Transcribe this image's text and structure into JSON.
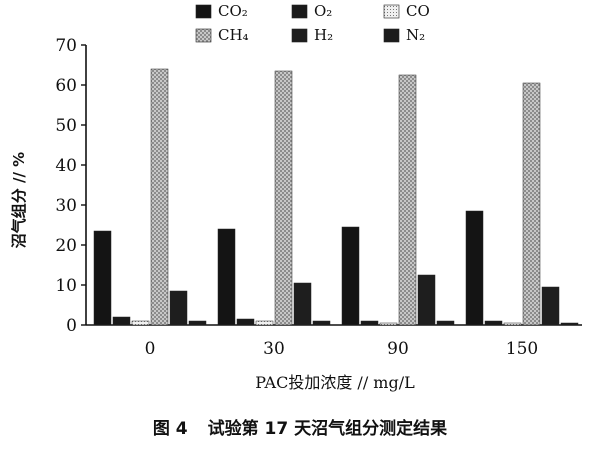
{
  "chart_data": {
    "type": "bar",
    "categories": [
      "0",
      "30",
      "90",
      "150"
    ],
    "series": [
      {
        "name": "CO₂",
        "values": [
          23.5,
          24,
          24.5,
          28.5
        ]
      },
      {
        "name": "O₂",
        "values": [
          2,
          1.5,
          1,
          1
        ]
      },
      {
        "name": "CO",
        "values": [
          1,
          1,
          0.5,
          0.5
        ]
      },
      {
        "name": "CH₄",
        "values": [
          64,
          63.5,
          62.5,
          60.5
        ]
      },
      {
        "name": "H₂",
        "values": [
          8.5,
          10.5,
          12.5,
          9.5
        ]
      },
      {
        "name": "N₂",
        "values": [
          1,
          1,
          1,
          0.5
        ]
      }
    ],
    "ylim": [
      0,
      70
    ],
    "yticks": [
      "0",
      "10",
      "20",
      "30",
      "40",
      "50",
      "60",
      "70"
    ],
    "xlabel": "PAC投加浓度 // mg/L",
    "ylabel": "沼气组分 // %",
    "legend_placement": "top",
    "colors": {
      "CO₂": "#141414",
      "O₂": "#1a1a1a",
      "CO": "#d9d9d9",
      "CH₄": "#9a9a9a",
      "H₂": "#1e1e1e",
      "N₂": "#1c1c1c"
    }
  },
  "caption": {
    "label": "图 4",
    "text": "试验第 17 天沼气组分测定结果"
  }
}
